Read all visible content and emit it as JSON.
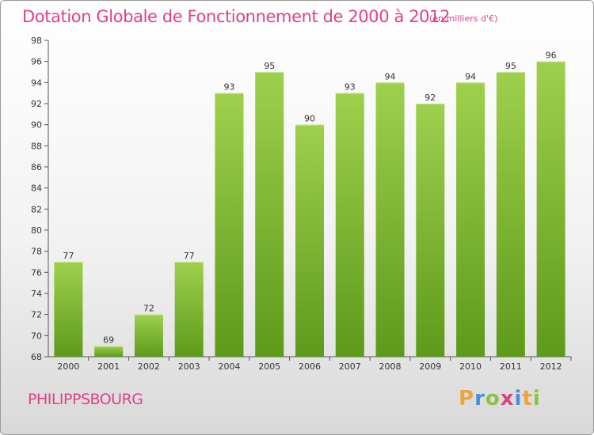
{
  "chart_data": {
    "type": "bar",
    "title": "Dotation Globale de Fonctionnement de 2000 à 2012",
    "subtitle": "(en milliers d'€)",
    "categories": [
      "2000",
      "2001",
      "2002",
      "2003",
      "2004",
      "2005",
      "2006",
      "2007",
      "2008",
      "2009",
      "2010",
      "2011",
      "2012"
    ],
    "values": [
      77,
      69,
      72,
      77,
      93,
      95,
      90,
      93,
      94,
      92,
      94,
      95,
      96
    ],
    "ylim": [
      68,
      98
    ],
    "yticks": [
      68,
      70,
      72,
      74,
      76,
      78,
      80,
      82,
      84,
      86,
      88,
      90,
      92,
      94,
      96,
      98
    ],
    "grid": false,
    "bar_color_top": "#9ed04d",
    "bar_color_bottom": "#5e9a1a"
  },
  "footer": {
    "city": "PHILIPPSBOURG",
    "logo_letters": [
      {
        "ch": "P",
        "color": "#f0a23b"
      },
      {
        "ch": "r",
        "color": "#4a90d9"
      },
      {
        "ch": "o",
        "color": "#8ac43f"
      },
      {
        "ch": "x",
        "color": "#e0408a"
      },
      {
        "ch": "i",
        "color": "#4a90d9"
      },
      {
        "ch": "t",
        "color": "#f0a23b"
      },
      {
        "ch": "i",
        "color": "#8ac43f"
      }
    ]
  }
}
